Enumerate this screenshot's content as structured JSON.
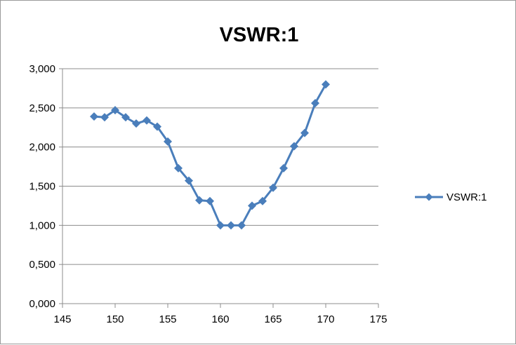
{
  "chart_data": {
    "type": "line",
    "title": "VSWR:1",
    "xlabel": "",
    "ylabel": "",
    "xlim": [
      145,
      175
    ],
    "ylim": [
      0,
      3
    ],
    "x_ticks": [
      145,
      150,
      155,
      160,
      165,
      170,
      175
    ],
    "x_tick_labels": [
      "145",
      "150",
      "155",
      "160",
      "165",
      "170",
      "175"
    ],
    "y_ticks": [
      0,
      0.5,
      1,
      1.5,
      2,
      2.5,
      3
    ],
    "y_tick_labels": [
      "0,000",
      "0,500",
      "1,000",
      "1,500",
      "2,000",
      "2,500",
      "3,000"
    ],
    "grid": "horizontal",
    "legend_position": "right",
    "series": [
      {
        "name": "VSWR:1",
        "color": "#4a7ebb",
        "marker": "diamond",
        "x": [
          148,
          149,
          150,
          151,
          152,
          153,
          154,
          155,
          156,
          157,
          158,
          159,
          160,
          161,
          162,
          163,
          164,
          165,
          166,
          167,
          168,
          169,
          170
        ],
        "y": [
          2.39,
          2.38,
          2.47,
          2.38,
          2.3,
          2.34,
          2.26,
          2.07,
          1.73,
          1.57,
          1.32,
          1.31,
          1.0,
          1.0,
          1.0,
          1.25,
          1.31,
          1.48,
          1.73,
          2.01,
          2.18,
          2.56,
          2.8
        ]
      }
    ]
  }
}
